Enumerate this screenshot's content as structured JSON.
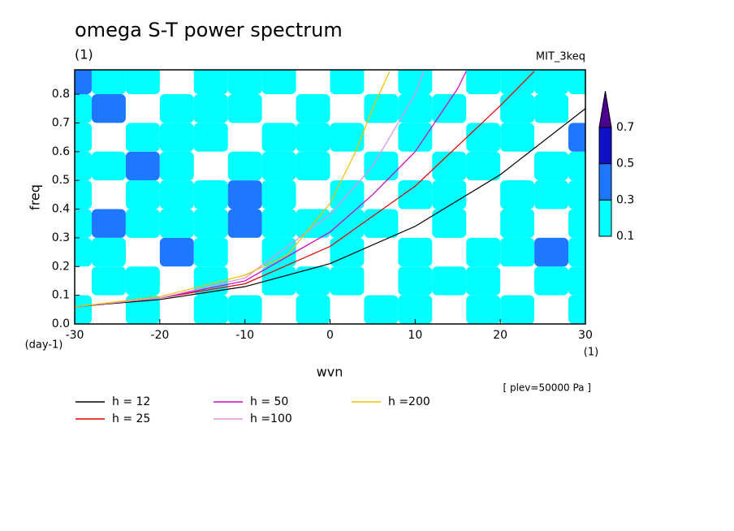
{
  "chart_data": {
    "type": "contour",
    "title": "omega S-T power spectrum",
    "subtitle": "(1)",
    "run_label": "MIT_3keq",
    "level_note": "[ plev=50000 Pa ]",
    "xlabel": "wvn",
    "ylabel": "freq",
    "x_unit": "(1)",
    "y_unit": "(day-1)",
    "xlim": [
      -30,
      30
    ],
    "ylim": [
      0,
      0.885
    ],
    "xticks": [
      -30,
      -20,
      -10,
      0,
      10,
      20,
      30
    ],
    "yticks": [
      {
        "value": 0,
        "label": "0.0"
      },
      0.1,
      0.2,
      0.3,
      0.4,
      0.5,
      0.6,
      0.7,
      0.8
    ],
    "colorbar": {
      "levels": [
        0.1,
        0.3,
        0.5,
        0.7
      ],
      "colors": [
        "#00ffff",
        "#1e78ff",
        "#1010c8",
        "#4b0090"
      ]
    },
    "field": {
      "x": [
        -30,
        -26,
        -22,
        -18,
        -14,
        -10,
        -6,
        -2,
        2,
        6,
        10,
        14,
        18,
        22,
        26,
        30
      ],
      "y": [
        0.05,
        0.15,
        0.25,
        0.35,
        0.45,
        0.55,
        0.65,
        0.75,
        0.85
      ],
      "z": [
        [
          0.15,
          0,
          0.2,
          0,
          0.15,
          0.2,
          0,
          0.15,
          0,
          0.2,
          0.15,
          0,
          0.2,
          0.15,
          0,
          0.2
        ],
        [
          0,
          0.2,
          0.15,
          0,
          0.2,
          0,
          0.15,
          0.2,
          0.15,
          0,
          0.2,
          0.15,
          0.15,
          0,
          0.2,
          0.15
        ],
        [
          0.15,
          0.2,
          0,
          0.35,
          0.15,
          0,
          0.2,
          0,
          0.15,
          0,
          0.15,
          0,
          0.2,
          0.15,
          0.35,
          0.2
        ],
        [
          0.2,
          0.35,
          0.15,
          0.2,
          0.2,
          0.4,
          0.2,
          0.15,
          0.2,
          0.15,
          0,
          0.15,
          0,
          0.2,
          0,
          0.15
        ],
        [
          0.2,
          0,
          0.15,
          0.2,
          0.15,
          0.35,
          0.2,
          0,
          0.15,
          0,
          0.2,
          0.15,
          0,
          0.15,
          0.2,
          0.15
        ],
        [
          0.2,
          0.15,
          0.35,
          0.2,
          0,
          0.2,
          0.15,
          0.2,
          0,
          0.15,
          0,
          0.2,
          0.15,
          0,
          0.15,
          0.2
        ],
        [
          0.15,
          0,
          0.2,
          0.15,
          0.2,
          0,
          0.2,
          0.15,
          0.15,
          0,
          0.2,
          0,
          0.2,
          0.15,
          0,
          0.35
        ],
        [
          0.2,
          0.35,
          0,
          0.15,
          0.2,
          0.15,
          0,
          0.2,
          0,
          0.15,
          0.2,
          0.15,
          0,
          0.2,
          0.15,
          0
        ],
        [
          0.35,
          0.15,
          0.2,
          0,
          0.15,
          0.2,
          0.15,
          0,
          0.2,
          0,
          0.15,
          0,
          0.2,
          0.15,
          0.2,
          0.15
        ]
      ]
    },
    "series": [
      {
        "name": "h = 12",
        "color": "#000000",
        "x": [
          -30,
          -20,
          -10,
          0,
          10,
          20,
          30
        ],
        "values": [
          0.06,
          0.085,
          0.13,
          0.21,
          0.34,
          0.52,
          0.75
        ]
      },
      {
        "name": "h = 25",
        "color": "#e00000",
        "x": [
          -30,
          -20,
          -10,
          0,
          10,
          20,
          24
        ],
        "values": [
          0.06,
          0.09,
          0.14,
          0.27,
          0.48,
          0.76,
          0.88
        ]
      },
      {
        "name": "h = 50",
        "color": "#d000c0",
        "x": [
          -30,
          -20,
          -10,
          0,
          5,
          10,
          15,
          16
        ],
        "values": [
          0.06,
          0.09,
          0.15,
          0.32,
          0.45,
          0.6,
          0.82,
          0.88
        ]
      },
      {
        "name": "h =100",
        "color": "#e090e0",
        "x": [
          -30,
          -20,
          -10,
          0,
          5,
          10,
          11
        ],
        "values": [
          0.06,
          0.09,
          0.16,
          0.38,
          0.55,
          0.8,
          0.88
        ]
      },
      {
        "name": "h =200",
        "color": "#f0c000",
        "x": [
          -30,
          -20,
          -10,
          -5,
          0,
          3,
          5,
          7
        ],
        "values": [
          0.06,
          0.095,
          0.17,
          0.24,
          0.42,
          0.6,
          0.75,
          0.88
        ]
      }
    ]
  }
}
